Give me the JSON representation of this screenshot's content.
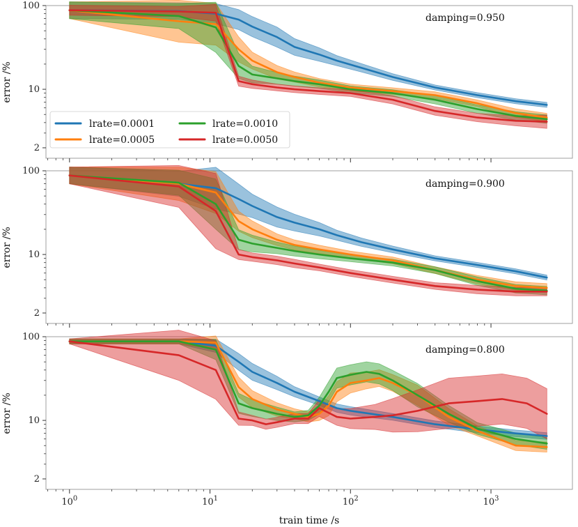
{
  "chart_data": {
    "type": "line",
    "xscale": "log",
    "yscale": "log",
    "xlabel": "train time /s",
    "ylabel": "error /%",
    "xlim": [
      0.68,
      3800
    ],
    "ylim": [
      1.5,
      100
    ],
    "xticks": [
      1,
      10,
      100,
      1000
    ],
    "xtick_labels": [
      "10^0",
      "10^1",
      "10^2",
      "10^3"
    ],
    "yticks": [
      2,
      10,
      100
    ],
    "ytick_labels": [
      "2",
      "10",
      "100"
    ],
    "legend": {
      "location": "lower-left of top panel",
      "entries": [
        "lrate=0.0001",
        "lrate=0.0005",
        "lrate=0.0010",
        "lrate=0.0050"
      ]
    },
    "colors": {
      "lrate=0.0001": "#1f77b4",
      "lrate=0.0005": "#ff7f0e",
      "lrate=0.0010": "#2ca02c",
      "lrate=0.0050": "#d62728"
    },
    "panels": [
      {
        "annotation": "damping=0.950",
        "series": [
          {
            "name": "lrate=0.0001",
            "x": [
              1,
              6,
              11,
              16,
              20,
              30,
              40,
              60,
              80,
              120,
              200,
              400,
              800,
              1500,
              2500
            ],
            "y": [
              88,
              86,
              80,
              68,
              56,
              42,
              32,
              26,
              22,
              18,
              14,
              10.5,
              8.5,
              7.2,
              6.5
            ],
            "band": [
              0.1,
              0.1,
              0.12,
              0.12,
              0.12,
              0.12,
              0.1,
              0.08,
              0.06,
              0.05,
              0.04,
              0.03,
              0.03,
              0.03,
              0.03
            ]
          },
          {
            "name": "lrate=0.0005",
            "x": [
              1,
              6,
              11,
              16,
              20,
              30,
              40,
              60,
              100,
              200,
              400,
              800,
              1500,
              2500
            ],
            "y": [
              88,
              65,
              60,
              30,
              22,
              16,
              14,
              12,
              10.5,
              9.5,
              8.5,
              6.8,
              5.2,
              4.6
            ],
            "band": [
              0.1,
              0.25,
              0.25,
              0.15,
              0.1,
              0.08,
              0.06,
              0.05,
              0.04,
              0.04,
              0.04,
              0.04,
              0.05,
              0.05
            ]
          },
          {
            "name": "lrate=0.0010",
            "x": [
              1,
              6,
              11,
              16,
              20,
              30,
              40,
              60,
              100,
              200,
              400,
              800,
              1500,
              2500
            ],
            "y": [
              88,
              75,
              55,
              19,
              15,
              13.5,
              12.5,
              11.5,
              10,
              9,
              7.5,
              5.8,
              4.8,
              4.4
            ],
            "band": [
              0.1,
              0.15,
              0.3,
              0.15,
              0.1,
              0.07,
              0.06,
              0.05,
              0.04,
              0.04,
              0.05,
              0.05,
              0.05,
              0.05
            ]
          },
          {
            "name": "lrate=0.0050",
            "x": [
              1,
              6,
              11,
              16,
              20,
              30,
              40,
              60,
              100,
              200,
              400,
              800,
              1500,
              2500
            ],
            "y": [
              88,
              85,
              82,
              12.5,
              11.5,
              10.5,
              10,
              9.5,
              9,
              7.5,
              5.5,
              4.6,
              4.2,
              4.1
            ],
            "band": [
              0.06,
              0.06,
              0.1,
              0.06,
              0.05,
              0.04,
              0.04,
              0.04,
              0.04,
              0.05,
              0.05,
              0.05,
              0.06,
              0.08
            ]
          }
        ]
      },
      {
        "annotation": "damping=0.900",
        "series": [
          {
            "name": "lrate=0.0001",
            "x": [
              1,
              6,
              11,
              16,
              20,
              30,
              40,
              60,
              80,
              120,
              200,
              400,
              800,
              1500,
              2500
            ],
            "y": [
              88,
              70,
              62,
              46,
              38,
              28,
              24,
              20,
              17,
              14,
              11.5,
              9,
              7.5,
              6.3,
              5.3
            ],
            "band": [
              0.1,
              0.15,
              0.25,
              0.18,
              0.14,
              0.12,
              0.1,
              0.08,
              0.06,
              0.05,
              0.04,
              0.03,
              0.03,
              0.03,
              0.03
            ]
          },
          {
            "name": "lrate=0.0005",
            "x": [
              1,
              6,
              11,
              16,
              20,
              30,
              40,
              60,
              100,
              200,
              400,
              800,
              1500,
              2500
            ],
            "y": [
              88,
              70,
              55,
              25,
              20,
              15,
              13,
              11.5,
              10,
              8.5,
              6.5,
              5,
              4.2,
              4
            ],
            "band": [
              0.1,
              0.2,
              0.25,
              0.12,
              0.1,
              0.07,
              0.06,
              0.05,
              0.04,
              0.04,
              0.04,
              0.05,
              0.05,
              0.05
            ]
          },
          {
            "name": "lrate=0.0010",
            "x": [
              1,
              6,
              11,
              16,
              20,
              30,
              40,
              60,
              100,
              200,
              400,
              800,
              1500,
              2500
            ],
            "y": [
              88,
              72,
              40,
              15,
              13.5,
              12,
              11,
              10,
              9,
              8,
              6.5,
              4.8,
              3.9,
              3.7
            ],
            "band": [
              0.1,
              0.15,
              0.3,
              0.12,
              0.1,
              0.07,
              0.06,
              0.05,
              0.04,
              0.04,
              0.04,
              0.05,
              0.05,
              0.05
            ]
          },
          {
            "name": "lrate=0.0050",
            "x": [
              1,
              6,
              11,
              16,
              20,
              30,
              40,
              60,
              100,
              200,
              400,
              800,
              1500,
              2500
            ],
            "y": [
              88,
              65,
              33,
              10,
              9.3,
              8.5,
              7.8,
              7,
              6,
              5,
              4.2,
              3.8,
              3.6,
              3.6
            ],
            "band": [
              0.1,
              0.25,
              0.45,
              0.06,
              0.05,
              0.05,
              0.05,
              0.04,
              0.04,
              0.04,
              0.04,
              0.05,
              0.05,
              0.05
            ]
          }
        ]
      },
      {
        "annotation": "damping=0.800",
        "series": [
          {
            "name": "lrate=0.0001",
            "x": [
              1,
              6,
              11,
              16,
              20,
              30,
              40,
              60,
              80,
              100,
              200,
              400,
              800,
              1500,
              2500
            ],
            "y": [
              88,
              88,
              78,
              50,
              38,
              28,
              22,
              17,
              14,
              13,
              11,
              9,
              7.8,
              7,
              6.5
            ],
            "band": [
              0.03,
              0.03,
              0.08,
              0.1,
              0.1,
              0.08,
              0.06,
              0.05,
              0.05,
              0.05,
              0.04,
              0.04,
              0.04,
              0.04,
              0.04
            ]
          },
          {
            "name": "lrate=0.0005",
            "x": [
              1,
              6,
              11,
              16,
              20,
              30,
              40,
              50,
              60,
              70,
              80,
              100,
              130,
              160,
              200,
              300,
              500,
              800,
              1500,
              2500
            ],
            "y": [
              88,
              88,
              85,
              25,
              18,
              13.5,
              12,
              11,
              12,
              15,
              22,
              28,
              30,
              32,
              28,
              20,
              11,
              7.5,
              5,
              4.8
            ],
            "band": [
              0.03,
              0.03,
              0.08,
              0.12,
              0.1,
              0.08,
              0.06,
              0.06,
              0.08,
              0.12,
              0.12,
              0.12,
              0.1,
              0.1,
              0.1,
              0.12,
              0.1,
              0.06,
              0.06,
              0.06
            ]
          },
          {
            "name": "lrate=0.0010",
            "x": [
              1,
              6,
              11,
              16,
              20,
              30,
              40,
              50,
              60,
              70,
              80,
              100,
              130,
              160,
              200,
              300,
              500,
              800,
              1500,
              2500
            ],
            "y": [
              88,
              88,
              70,
              16,
              14,
              12,
              11,
              11.5,
              15,
              22,
              32,
              35,
              38,
              36,
              30,
              20,
              12,
              8,
              6,
              5.3
            ],
            "band": [
              0.03,
              0.03,
              0.12,
              0.12,
              0.1,
              0.08,
              0.06,
              0.06,
              0.1,
              0.12,
              0.12,
              0.12,
              0.12,
              0.12,
              0.12,
              0.14,
              0.1,
              0.07,
              0.07,
              0.07
            ]
          },
          {
            "name": "lrate=0.0050",
            "x": [
              1,
              6,
              11,
              16,
              20,
              25,
              30,
              40,
              50,
              60,
              80,
              100,
              150,
              200,
              300,
              500,
              800,
              1200,
              1800,
              2500
            ],
            "y": [
              88,
              60,
              40,
              10.5,
              10,
              9,
              9.5,
              10.5,
              10.5,
              14,
              11,
              10.5,
              11,
              11.5,
              13,
              16,
              17,
              18,
              16,
              12
            ],
            "band": [
              0.03,
              0.3,
              0.35,
              0.08,
              0.06,
              0.06,
              0.06,
              0.06,
              0.06,
              0.1,
              0.1,
              0.12,
              0.15,
              0.2,
              0.25,
              0.3,
              0.3,
              0.3,
              0.3,
              0.3
            ]
          }
        ]
      }
    ]
  }
}
